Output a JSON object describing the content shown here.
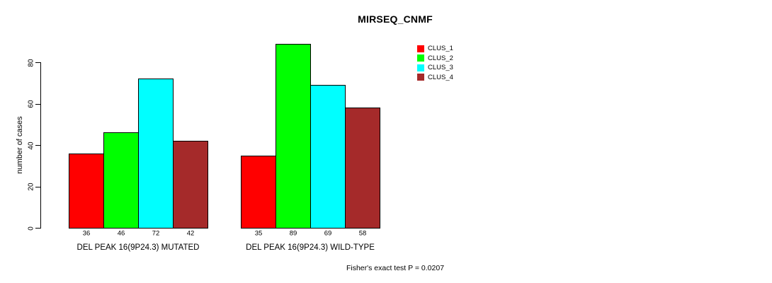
{
  "chart_data": {
    "type": "bar",
    "title": "MIRSEQ_CNMF",
    "ylabel": "number of cases",
    "xlabel": "",
    "yticks": [
      0,
      20,
      40,
      60,
      80
    ],
    "ylim": [
      0,
      89
    ],
    "grid": false,
    "legend_position": "top-right",
    "bar_value_labels_shown": true,
    "series": [
      {
        "name": "CLUS_1",
        "color": "#ff0000"
      },
      {
        "name": "CLUS_2",
        "color": "#00ff00"
      },
      {
        "name": "CLUS_3",
        "color": "#00ffff"
      },
      {
        "name": "CLUS_4",
        "color": "#a52a2a"
      }
    ],
    "groups": [
      {
        "label": "DEL PEAK 16(9P24.3) MUTATED",
        "values": [
          36,
          46,
          72,
          42
        ]
      },
      {
        "label": "DEL PEAK 16(9P24.3) WILD-TYPE",
        "values": [
          35,
          89,
          69,
          58
        ]
      }
    ],
    "annotation": "Fisher's exact test P = 0.0207",
    "axis_color": "#000000",
    "bar_border_color": "#000000"
  }
}
